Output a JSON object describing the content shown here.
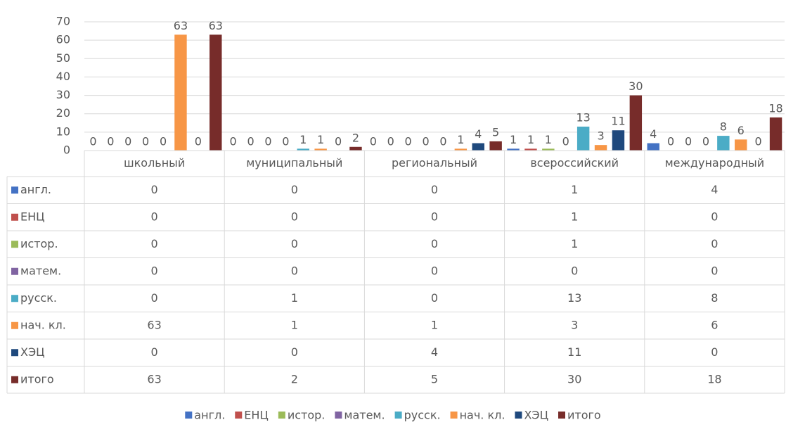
{
  "chart_data": {
    "type": "bar",
    "categories": [
      "школьный",
      "муниципальный",
      "региональный",
      "всероссийский",
      "международный"
    ],
    "series": [
      {
        "name": "англ.",
        "color": "#4472c4",
        "values": [
          0,
          0,
          0,
          1,
          4
        ]
      },
      {
        "name": "ЕНЦ",
        "color": "#c0504d",
        "values": [
          0,
          0,
          0,
          1,
          0
        ]
      },
      {
        "name": "истор.",
        "color": "#9bbb59",
        "values": [
          0,
          0,
          0,
          1,
          0
        ]
      },
      {
        "name": "матем.",
        "color": "#8064a2",
        "values": [
          0,
          0,
          0,
          0,
          0
        ]
      },
      {
        "name": "русск.",
        "color": "#4bacc6",
        "values": [
          0,
          1,
          0,
          13,
          8
        ]
      },
      {
        "name": "нач. кл.",
        "color": "#f79646",
        "values": [
          63,
          1,
          1,
          3,
          6
        ]
      },
      {
        "name": "ХЭЦ",
        "color": "#1f497d",
        "values": [
          0,
          0,
          4,
          11,
          0
        ]
      },
      {
        "name": "итого",
        "color": "#772c2a",
        "values": [
          63,
          2,
          5,
          30,
          18
        ]
      }
    ],
    "ylim": [
      0,
      70
    ],
    "yticks": [
      0,
      10,
      20,
      30,
      40,
      50,
      60,
      70
    ],
    "grid": true,
    "legend": "bottom"
  }
}
